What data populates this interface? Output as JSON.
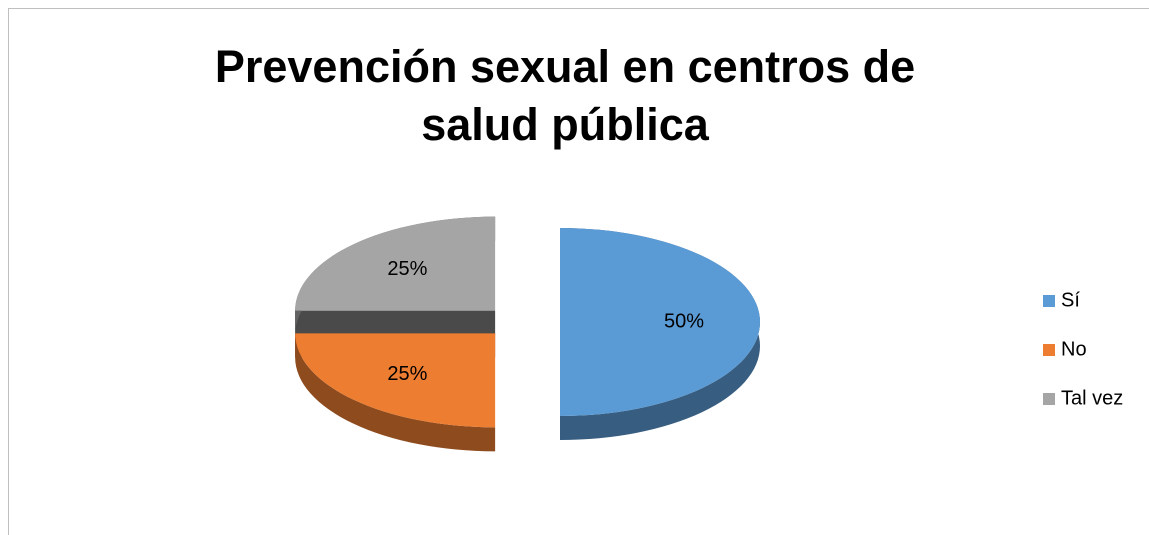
{
  "chart_data": {
    "type": "pie",
    "title": "Prevención sexual en centros de salud pública",
    "categories": [
      "Sí",
      "No",
      "Tal vez"
    ],
    "values": [
      50,
      25,
      25
    ],
    "value_labels": [
      "50%",
      "25%",
      "25%"
    ],
    "colors": [
      "#5b9bd5",
      "#ed7d31",
      "#a5a5a5"
    ],
    "legend": "right"
  }
}
